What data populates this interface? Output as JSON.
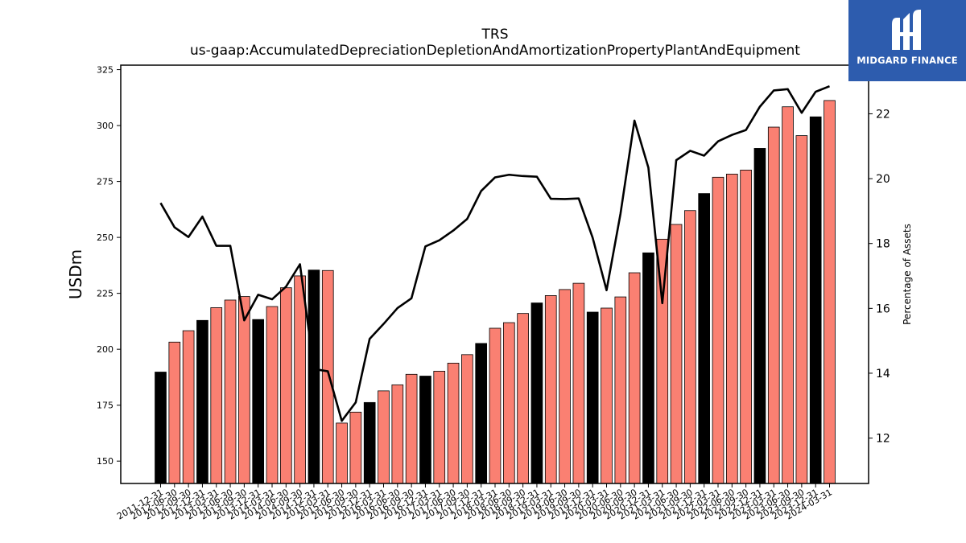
{
  "chart_data": {
    "type": "bar",
    "title": "TRS",
    "subtitle": "us-gaap:AccumulatedDepreciationDepletionAndAmortizationPropertyPlantAndEquipment",
    "ylabel": "USDm",
    "y2label": "Percentage of Assets",
    "ylim": [
      140,
      327
    ],
    "y2lim": [
      10.6,
      23.5
    ],
    "yticks": [
      150,
      175,
      200,
      225,
      250,
      275,
      300,
      325
    ],
    "y2ticks": [
      12,
      14,
      16,
      18,
      20,
      22
    ],
    "categories": [
      "2011-12-31",
      "2012-06-30",
      "2012-09-30",
      "2012-12-31",
      "2013-03-31",
      "2013-06-30",
      "2013-09-30",
      "2013-12-31",
      "2014-03-31",
      "2014-06-30",
      "2014-09-30",
      "2014-12-31",
      "2015-03-31",
      "2015-06-30",
      "2015-09-30",
      "2015-12-31",
      "2016-03-31",
      "2016-06-30",
      "2016-09-30",
      "2016-12-31",
      "2017-03-31",
      "2017-06-30",
      "2017-09-30",
      "2017-12-31",
      "2018-03-31",
      "2018-06-30",
      "2018-09-30",
      "2018-12-31",
      "2019-03-31",
      "2019-06-30",
      "2019-09-30",
      "2019-12-31",
      "2020-03-31",
      "2020-06-30",
      "2020-09-30",
      "2020-12-31",
      "2021-03-31",
      "2021-06-30",
      "2021-09-30",
      "2021-12-31",
      "2022-03-31",
      "2022-06-30",
      "2022-09-30",
      "2022-12-31",
      "2023-03-31",
      "2023-06-30",
      "2023-09-30",
      "2023-12-31",
      "2024-03-31"
    ],
    "series": [
      {
        "type": "bar",
        "values": [
          189.8,
          203.2,
          208.3,
          212.9,
          218.6,
          222.0,
          223.6,
          213.3,
          219.1,
          227.5,
          232.8,
          235.4,
          235.2,
          167.0,
          171.9,
          176.2,
          181.4,
          184.1,
          188.8,
          188.0,
          190.2,
          193.8,
          197.6,
          202.6,
          209.4,
          211.9,
          216.0,
          220.7,
          224.0,
          226.7,
          229.5,
          216.6,
          218.4,
          223.4,
          234.2,
          243.1,
          249.2,
          255.8,
          262.0,
          269.6,
          276.9,
          278.3,
          280.1,
          289.8,
          299.3,
          308.4,
          295.5,
          303.9,
          311.2
        ],
        "colors": [
          "#000000",
          "#fa8072",
          "#fa8072",
          "#000000",
          "#fa8072",
          "#fa8072",
          "#fa8072",
          "#000000",
          "#fa8072",
          "#fa8072",
          "#fa8072",
          "#000000",
          "#fa8072",
          "#fa8072",
          "#fa8072",
          "#000000",
          "#fa8072",
          "#fa8072",
          "#fa8072",
          "#000000",
          "#fa8072",
          "#fa8072",
          "#fa8072",
          "#000000",
          "#fa8072",
          "#fa8072",
          "#fa8072",
          "#000000",
          "#fa8072",
          "#fa8072",
          "#fa8072",
          "#000000",
          "#fa8072",
          "#fa8072",
          "#fa8072",
          "#000000",
          "#fa8072",
          "#fa8072",
          "#fa8072",
          "#000000",
          "#fa8072",
          "#fa8072",
          "#fa8072",
          "#000000",
          "#fa8072",
          "#fa8072",
          "#fa8072",
          "#000000",
          "#fa8072"
        ]
      },
      {
        "type": "line",
        "axis": "right",
        "color": "#000000",
        "values": [
          19.25,
          18.5,
          18.2,
          18.83,
          17.93,
          17.93,
          15.63,
          16.42,
          16.28,
          16.67,
          17.36,
          14.13,
          14.06,
          12.53,
          13.1,
          15.06,
          15.52,
          16.01,
          16.31,
          17.91,
          18.1,
          18.4,
          18.76,
          19.62,
          20.04,
          20.12,
          20.08,
          20.06,
          19.38,
          19.37,
          19.39,
          18.18,
          16.56,
          18.92,
          21.79,
          20.34,
          16.16,
          20.57,
          20.86,
          20.71,
          21.15,
          21.35,
          21.5,
          22.22,
          22.72,
          22.76,
          22.03,
          22.68,
          22.85
        ]
      }
    ],
    "grid": false,
    "logo": "MIDGARD FINANCE"
  }
}
